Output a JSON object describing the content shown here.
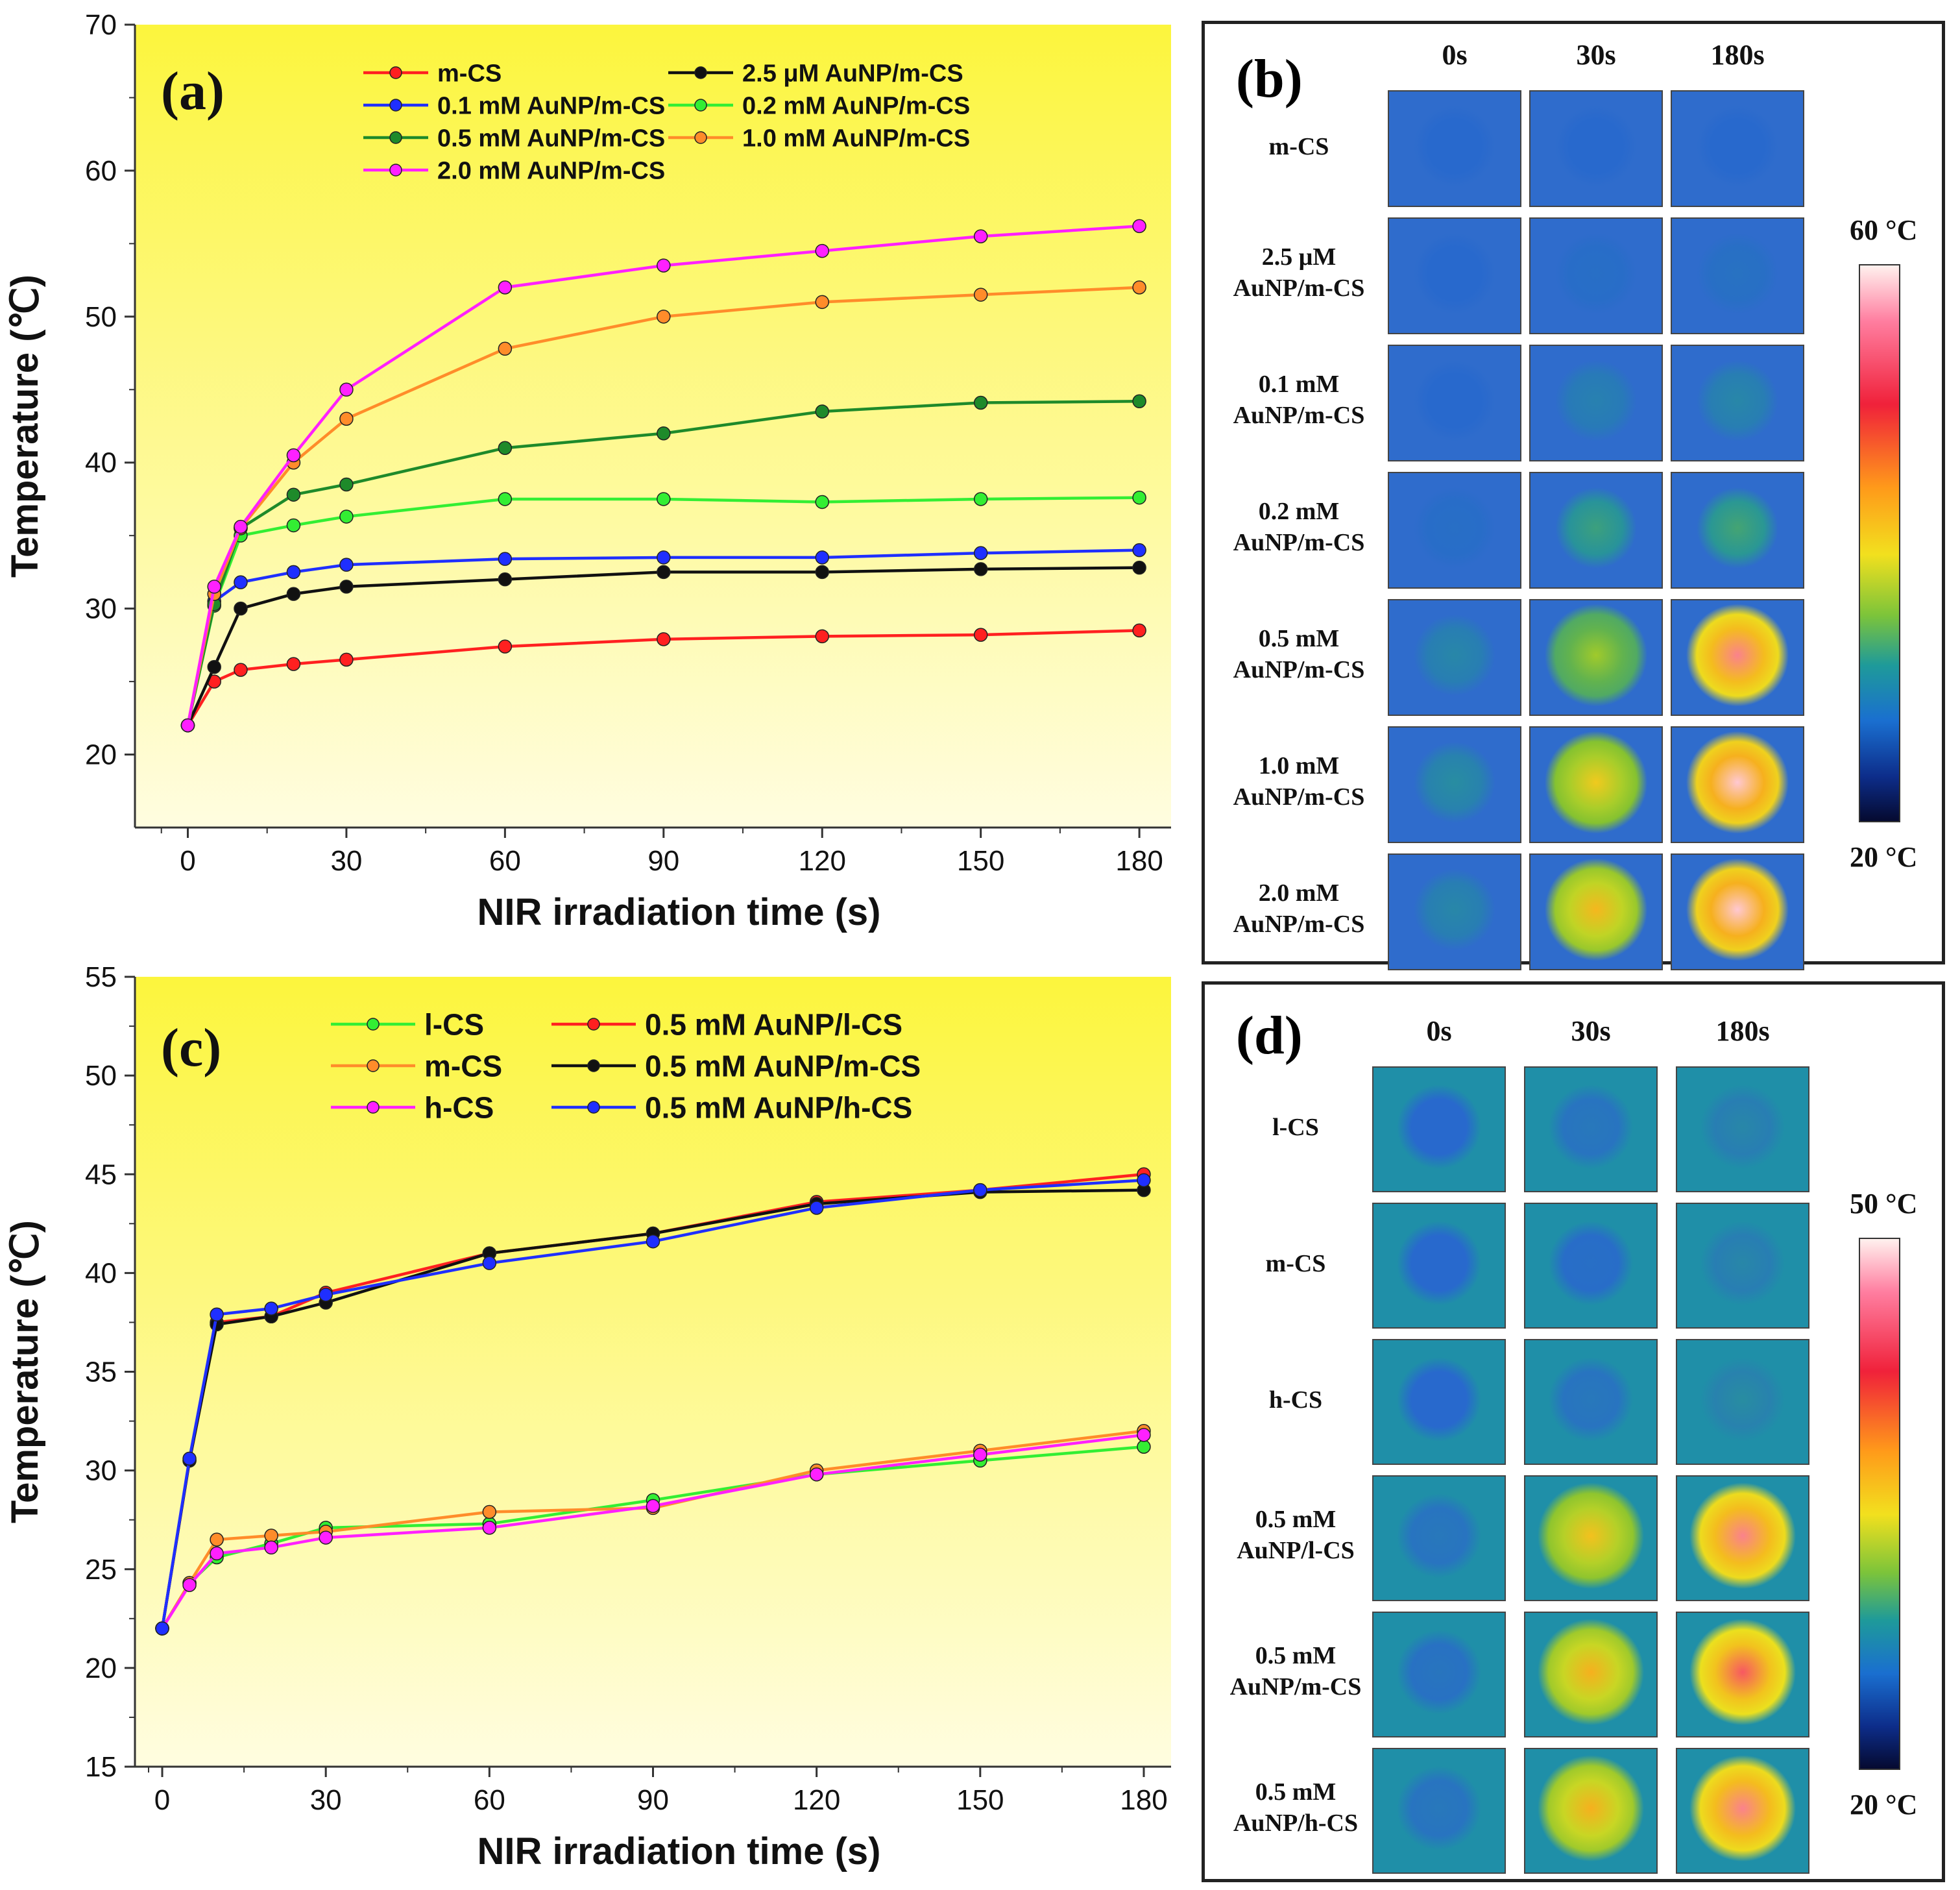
{
  "chart_data": [
    {
      "panel": "(a)",
      "type": "line",
      "xlabel": "NIR irradiation time (s)",
      "ylabel": "Temperature (℃)",
      "xlim": [
        -10,
        186
      ],
      "ylim": [
        15,
        70
      ],
      "xticks": [
        0,
        30,
        60,
        90,
        120,
        150,
        180
      ],
      "yticks": [
        20,
        30,
        40,
        50,
        60,
        70
      ],
      "x": [
        0,
        5,
        10,
        20,
        30,
        60,
        90,
        120,
        150,
        180
      ],
      "legend": "top-left, two columns",
      "series": [
        {
          "name": "m-CS",
          "color": "#ff2020",
          "values": [
            22,
            25.0,
            25.8,
            26.2,
            26.5,
            27.4,
            27.9,
            28.1,
            28.2,
            28.5
          ]
        },
        {
          "name": "2.5 μM AuNP/m-CS",
          "color": "#111111",
          "values": [
            22,
            26.0,
            30.0,
            31.0,
            31.5,
            32.0,
            32.5,
            32.5,
            32.7,
            32.8
          ]
        },
        {
          "name": "0.1 mM AuNP/m-CS",
          "color": "#1f2fff",
          "values": [
            22,
            30.5,
            31.8,
            32.5,
            33.0,
            33.4,
            33.5,
            33.5,
            33.8,
            34.0
          ]
        },
        {
          "name": "0.2 mM AuNP/m-CS",
          "color": "#33ee33",
          "values": [
            22,
            30.2,
            35.0,
            35.7,
            36.3,
            37.5,
            37.5,
            37.3,
            37.5,
            37.6
          ]
        },
        {
          "name": "0.5 mM AuNP/m-CS",
          "color": "#1e8a2a",
          "values": [
            22,
            30.3,
            35.5,
            37.8,
            38.5,
            41.0,
            42.0,
            43.5,
            44.1,
            44.2
          ]
        },
        {
          "name": "1.0 mM AuNP/m-CS",
          "color": "#ff8c2a",
          "values": [
            22,
            31.0,
            35.5,
            40.0,
            43.0,
            47.8,
            50.0,
            51.0,
            51.5,
            52.0
          ]
        },
        {
          "name": "2.0 mM AuNP/m-CS",
          "color": "#ff20ff",
          "values": [
            22,
            31.5,
            35.6,
            40.5,
            45.0,
            52.0,
            53.5,
            54.5,
            55.5,
            56.2
          ]
        }
      ]
    },
    {
      "panel": "(c)",
      "type": "line",
      "xlabel": "NIR irradiation time (s)",
      "ylabel": "Temperature (℃)",
      "xlim": [
        -5,
        185
      ],
      "ylim": [
        15,
        55
      ],
      "xticks": [
        0,
        30,
        60,
        90,
        120,
        150,
        180
      ],
      "yticks": [
        15,
        20,
        25,
        30,
        35,
        40,
        45,
        50,
        55
      ],
      "x": [
        0,
        5,
        10,
        20,
        30,
        60,
        90,
        120,
        150,
        180
      ],
      "legend": "top-left, two columns",
      "series": [
        {
          "name": "l-CS",
          "color": "#33ee33",
          "values": [
            22,
            24.3,
            25.6,
            26.3,
            27.1,
            27.3,
            28.5,
            29.8,
            30.5,
            31.2
          ]
        },
        {
          "name": "0.5 mM AuNP/l-CS",
          "color": "#ff2020",
          "values": [
            22,
            30.5,
            37.5,
            37.8,
            39.0,
            41.0,
            42.0,
            43.6,
            44.2,
            45.0
          ]
        },
        {
          "name": "m-CS",
          "color": "#ff8c2a",
          "values": [
            22,
            24.3,
            26.5,
            26.7,
            26.9,
            27.9,
            28.1,
            30.0,
            31.0,
            32.0
          ]
        },
        {
          "name": "0.5 mM AuNP/m-CS",
          "color": "#111111",
          "values": [
            22,
            30.5,
            37.4,
            37.8,
            38.5,
            41.0,
            42.0,
            43.5,
            44.1,
            44.2
          ]
        },
        {
          "name": "h-CS",
          "color": "#ff20ff",
          "values": [
            22,
            24.2,
            25.8,
            26.1,
            26.6,
            27.1,
            28.2,
            29.8,
            30.8,
            31.8
          ]
        },
        {
          "name": "0.5 mM AuNP/h-CS",
          "color": "#1f2fff",
          "values": [
            22,
            30.6,
            37.9,
            38.2,
            38.9,
            40.5,
            41.6,
            43.3,
            44.2,
            44.7
          ]
        }
      ]
    }
  ],
  "panel_b": {
    "letter": "(b)",
    "columns": [
      "0s",
      "30s",
      "180s"
    ],
    "rows": [
      {
        "lines": [
          "m-CS"
        ],
        "heat": [
          0,
          0,
          0
        ]
      },
      {
        "lines": [
          "2.5 μM",
          "AuNP/m-CS"
        ],
        "heat": [
          0,
          0.02,
          0.03
        ]
      },
      {
        "lines": [
          "0.1 mM",
          "AuNP/m-CS"
        ],
        "heat": [
          0,
          0.08,
          0.1
        ]
      },
      {
        "lines": [
          "0.2 mM",
          "AuNP/m-CS"
        ],
        "heat": [
          0.02,
          0.2,
          0.22
        ]
      },
      {
        "lines": [
          "0.5 mM",
          "AuNP/m-CS"
        ],
        "heat": [
          0.1,
          0.42,
          0.95
        ]
      },
      {
        "lines": [
          "1.0 mM",
          "AuNP/m-CS"
        ],
        "heat": [
          0.12,
          0.62,
          1.0
        ]
      },
      {
        "lines": [
          "2.0 mM",
          "AuNP/m-CS"
        ],
        "heat": [
          0.1,
          0.68,
          1.0
        ]
      }
    ],
    "scale_max": "60 °C",
    "scale_min": "20 °C"
  },
  "panel_d": {
    "letter": "(d)",
    "columns": [
      "0s",
      "30s",
      "180s"
    ],
    "rows": [
      {
        "lines": [
          "l-CS"
        ],
        "heat": [
          0,
          0.05,
          0.1
        ]
      },
      {
        "lines": [
          "m-CS"
        ],
        "heat": [
          0,
          0.02,
          0.1
        ]
      },
      {
        "lines": [
          "h-CS"
        ],
        "heat": [
          0,
          0.05,
          0.12
        ]
      },
      {
        "lines": [
          "0.5 mM",
          "AuNP/l-CS"
        ],
        "heat": [
          0.05,
          0.65,
          0.95
        ]
      },
      {
        "lines": [
          "0.5 mM",
          "AuNP/m-CS"
        ],
        "heat": [
          0.04,
          0.7,
          0.92
        ]
      },
      {
        "lines": [
          "0.5 mM",
          "AuNP/h-CS"
        ],
        "heat": [
          0.05,
          0.7,
          0.95
        ]
      }
    ],
    "scale_max": "50 °C",
    "scale_min": "20 °C"
  },
  "colors": {
    "plot_bg_top": "#fcf53d",
    "plot_bg_bottom": "#fffde0",
    "thermal_blue": "#2f6ccc",
    "thermal_teal": "#1f8fa8"
  }
}
